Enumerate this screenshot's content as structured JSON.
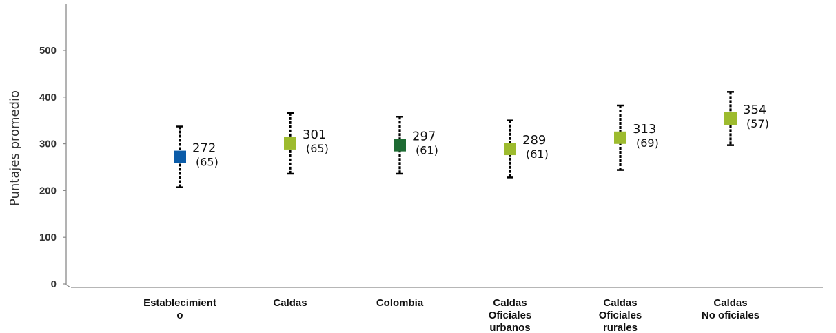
{
  "chart_data": {
    "type": "scatter",
    "ylabel": "Puntajes promedio",
    "xlabel": "",
    "ylim": [
      0,
      500
    ],
    "yticks": [
      0,
      100,
      200,
      300,
      400,
      500
    ],
    "grid": false,
    "categories": [
      [
        "Establecimient",
        "o"
      ],
      [
        "Caldas"
      ],
      [
        "Colombia"
      ],
      [
        "Caldas",
        "Oficiales",
        "urbanos"
      ],
      [
        "Caldas",
        "Oficiales",
        "rurales"
      ],
      [
        "Caldas",
        "No oficiales"
      ]
    ],
    "points": [
      {
        "mean": 272,
        "sd": 65,
        "mean_label": "272",
        "sd_label": "(65)",
        "color": "#0a5ba8"
      },
      {
        "mean": 301,
        "sd": 65,
        "mean_label": "301",
        "sd_label": "(65)",
        "color": "#9dbb2e"
      },
      {
        "mean": 297,
        "sd": 61,
        "mean_label": "297",
        "sd_label": "(61)",
        "color": "#1e6b33"
      },
      {
        "mean": 289,
        "sd": 61,
        "mean_label": "289",
        "sd_label": "(61)",
        "color": "#9dbb2e"
      },
      {
        "mean": 313,
        "sd": 69,
        "mean_label": "313",
        "sd_label": "(69)",
        "color": "#9dbb2e"
      },
      {
        "mean": 354,
        "sd": 57,
        "mean_label": "354",
        "sd_label": "(57)",
        "color": "#9dbb2e"
      }
    ]
  }
}
